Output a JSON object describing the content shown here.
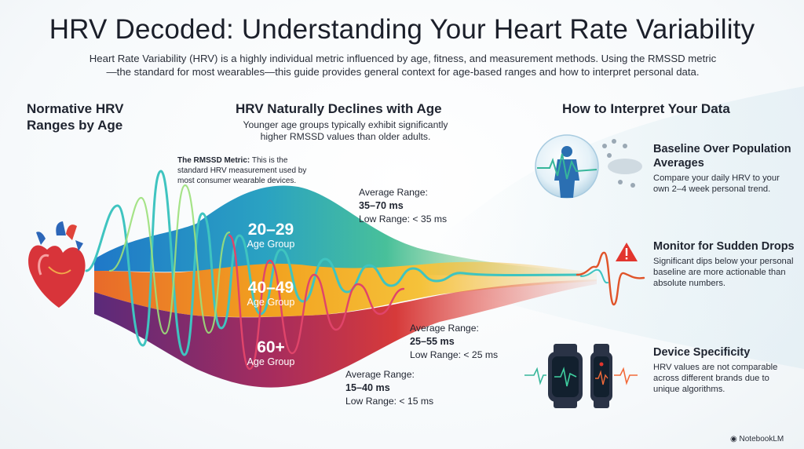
{
  "title": "HRV Decoded: Understanding Your Heart Rate Variability",
  "intro": "Heart Rate Variability (HRV) is a highly individual metric influenced by age, fitness, and measurement methods. Using the RMSSD metric—the standard for most wearables—this guide provides general context for age-based ranges and how to interpret personal data.",
  "sections": {
    "left_heading": "Normative HRV Ranges by Age",
    "middle_heading": "HRV Naturally Declines with Age",
    "middle_subtitle": "Younger age groups typically exhibit significantly higher RMSSD values than older adults.",
    "right_heading": "How to Interpret Your Data"
  },
  "rmssd_note": {
    "label": "The RMSSD Metric:",
    "text": " This is the standard HRV measurement used by most consumer wearable devices."
  },
  "age_groups": [
    {
      "range": "20–29",
      "label": "Age Group",
      "avg_label": "Average Range:",
      "avg_value": "35–70 ms",
      "low": "Low Range: < 35 ms",
      "color": "#2f86c9"
    },
    {
      "range": "40–49",
      "label": "Age Group",
      "avg_label": "Average Range:",
      "avg_value": "25–55 ms",
      "low": "Low Range: < 25 ms",
      "color": "#f2a21f"
    },
    {
      "range": "60+",
      "label": "Age Group",
      "avg_label": "Average Range:",
      "avg_value": "15–40 ms",
      "low": "Low Range: < 15 ms",
      "color": "#c6325a"
    }
  ],
  "tips": [
    {
      "heading": "Baseline Over Population Averages",
      "body": "Compare your daily HRV to your own 2–4 week personal trend.",
      "icon": "person-baseline-icon"
    },
    {
      "heading": "Monitor for Sudden Drops",
      "body": "Significant dips below your personal baseline are more actionable than absolute numbers.",
      "icon": "warning-icon"
    },
    {
      "heading": "Device Specificity",
      "body": "HRV values are not comparable across different brands due to unique algorithms.",
      "icon": "smartwatch-icon"
    }
  ],
  "brand": "NotebookLM",
  "colors": {
    "teal": "#2fb8a8",
    "blue": "#2f86c9",
    "orange": "#f2a21f",
    "red": "#d63a3a",
    "plum": "#7a2a5e"
  }
}
